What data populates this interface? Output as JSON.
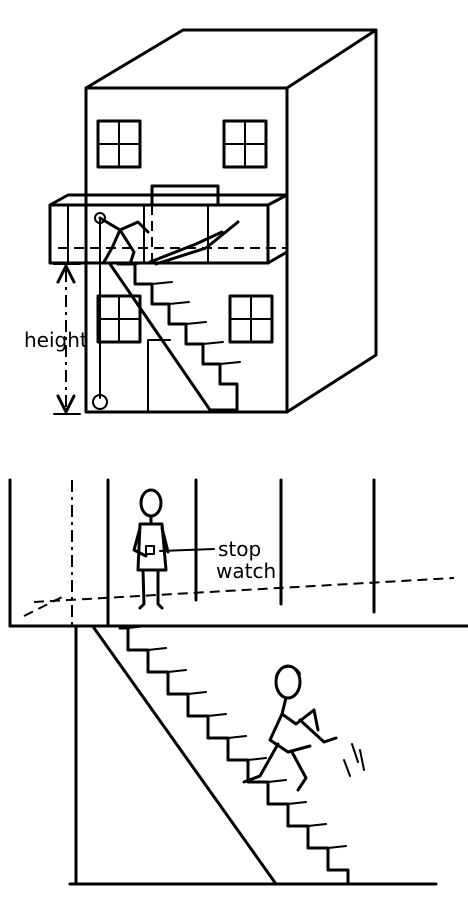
{
  "labels": {
    "height": "height",
    "stop": "stop",
    "watch": "watch"
  }
}
